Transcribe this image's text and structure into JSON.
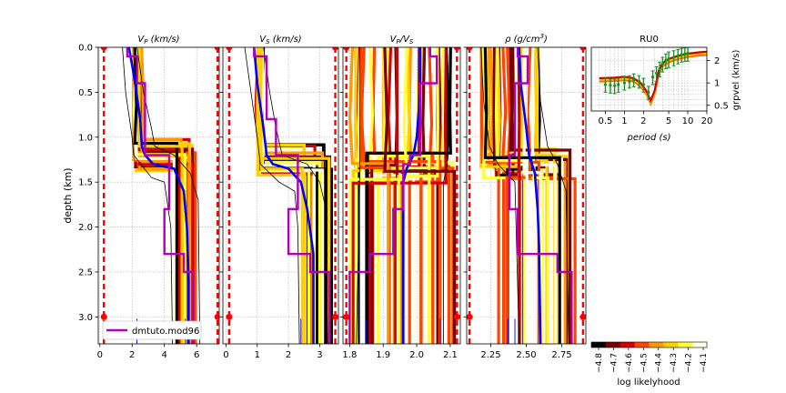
{
  "chart_data": [
    {
      "type": "line",
      "title": "V_P (km/s)",
      "title_main": "V",
      "title_sub": "P",
      "title_unit": "(km/s)",
      "ylabel": "depth (km)",
      "xlim": [
        -0.1,
        7.4
      ],
      "ylim": [
        3.3,
        0.0
      ],
      "x_ticks": [
        0,
        2,
        4,
        6
      ],
      "y_ticks": [
        0.0,
        0.5,
        1.0,
        1.5,
        2.0,
        2.5,
        3.0
      ],
      "grid": true,
      "bounds_lo": 0.25,
      "bounds_hi": 7.3,
      "jump_depth": 1.2,
      "cloud_top_lo": 2.1,
      "cloud_top_hi": 2.6,
      "cloud_bottom_lo": 4.6,
      "cloud_bottom_hi": 6.0,
      "best_model_mid": [
        [
          1.8,
          0.0
        ],
        [
          2.1,
          0.3
        ],
        [
          2.5,
          0.8
        ],
        [
          2.6,
          1.1
        ],
        [
          2.8,
          1.2
        ],
        [
          3.3,
          1.3
        ],
        [
          4.6,
          1.35
        ],
        [
          5.2,
          1.6
        ],
        [
          5.4,
          2.0
        ],
        [
          5.5,
          2.6
        ],
        [
          5.5,
          3.3
        ]
      ],
      "best_model_lo": [
        [
          1.4,
          0.0
        ],
        [
          1.6,
          0.5
        ],
        [
          2.0,
          1.0
        ],
        [
          2.1,
          1.2
        ],
        [
          3.2,
          1.45
        ],
        [
          4.0,
          1.5
        ],
        [
          4.4,
          2.0
        ],
        [
          4.5,
          3.3
        ]
      ],
      "best_model_hi": [
        [
          2.3,
          0.0
        ],
        [
          2.7,
          0.5
        ],
        [
          3.2,
          0.9
        ],
        [
          3.4,
          1.1
        ],
        [
          4.6,
          1.2
        ],
        [
          5.6,
          1.4
        ],
        [
          6.1,
          1.7
        ],
        [
          6.2,
          3.3
        ]
      ],
      "mod96": [
        [
          1.7,
          0.0
        ],
        [
          1.7,
          0.1
        ],
        [
          2.3,
          0.1
        ],
        [
          2.3,
          0.4
        ],
        [
          2.8,
          0.4
        ],
        [
          2.8,
          1.2
        ],
        [
          2.8,
          1.2
        ],
        [
          4.3,
          1.2
        ],
        [
          4.3,
          1.8
        ],
        [
          4.0,
          1.8
        ],
        [
          4.0,
          2.3
        ],
        [
          5.2,
          2.3
        ],
        [
          5.2,
          2.5
        ],
        [
          5.8,
          2.5
        ],
        [
          5.8,
          3.3
        ]
      ],
      "bottom_ticks": [
        2.3,
        5.3
      ]
    },
    {
      "type": "line",
      "title": "V_S (km/s)",
      "title_main": "V",
      "title_sub": "S",
      "title_unit": "(km/s)",
      "xlim": [
        -0.1,
        3.6
      ],
      "ylim": [
        3.3,
        0.0
      ],
      "x_ticks": [
        0,
        1,
        2,
        3
      ],
      "y_ticks": [
        0.0,
        0.5,
        1.0,
        1.5,
        2.0,
        2.5,
        3.0
      ],
      "grid": true,
      "bounds_lo": 0.1,
      "bounds_hi": 3.5,
      "jump_depth": 1.25,
      "cloud_top_lo": 1.0,
      "cloud_top_hi": 1.2,
      "cloud_bottom_lo": 2.3,
      "cloud_bottom_hi": 3.4,
      "best_model_mid": [
        [
          0.9,
          0.0
        ],
        [
          1.0,
          0.4
        ],
        [
          1.2,
          0.9
        ],
        [
          1.3,
          1.2
        ],
        [
          1.5,
          1.3
        ],
        [
          2.0,
          1.35
        ],
        [
          2.4,
          1.5
        ],
        [
          2.6,
          1.8
        ],
        [
          2.8,
          2.3
        ],
        [
          2.8,
          3.3
        ]
      ],
      "best_model_lo": [
        [
          0.6,
          0.0
        ],
        [
          0.8,
          0.5
        ],
        [
          1.0,
          1.0
        ],
        [
          1.1,
          1.3
        ],
        [
          1.7,
          1.5
        ],
        [
          2.2,
          1.6
        ],
        [
          2.3,
          2.0
        ],
        [
          2.35,
          3.3
        ]
      ],
      "best_model_hi": [
        [
          1.2,
          0.0
        ],
        [
          1.4,
          0.5
        ],
        [
          1.6,
          0.9
        ],
        [
          1.8,
          1.2
        ],
        [
          2.6,
          1.3
        ],
        [
          3.0,
          1.5
        ],
        [
          3.2,
          1.8
        ],
        [
          3.25,
          3.3
        ]
      ],
      "mod96": [
        [
          0.9,
          0.0
        ],
        [
          0.9,
          0.1
        ],
        [
          1.3,
          0.1
        ],
        [
          1.3,
          0.4
        ],
        [
          1.3,
          0.4
        ],
        [
          1.3,
          0.8
        ],
        [
          1.6,
          0.8
        ],
        [
          1.6,
          1.2
        ],
        [
          2.3,
          1.2
        ],
        [
          2.3,
          1.8
        ],
        [
          2.0,
          1.8
        ],
        [
          2.0,
          2.3
        ],
        [
          2.7,
          2.3
        ],
        [
          2.7,
          2.5
        ],
        [
          3.3,
          2.5
        ],
        [
          3.3,
          3.3
        ]
      ],
      "bottom_ticks": [
        2.4,
        2.8
      ]
    },
    {
      "type": "line",
      "title": "V_P/V_S",
      "title_main": "V",
      "title_sub": "P",
      "title_main2": "/V",
      "title_sub2": "S",
      "xlim": [
        1.78,
        2.13
      ],
      "ylim": [
        3.3,
        0.0
      ],
      "x_ticks": [
        1.8,
        1.9,
        2.0,
        2.1
      ],
      "x_tick_labels": [
        "1.8",
        "1.9",
        "2.0",
        "2.1"
      ],
      "y_ticks": [
        0.0,
        0.5,
        1.0,
        1.5,
        2.0,
        2.5,
        3.0
      ],
      "grid": true,
      "bounds_lo": 1.79,
      "bounds_hi": 2.12,
      "jump_depth": 1.35,
      "cloud_top_lo": 1.8,
      "cloud_top_hi": 2.12,
      "cloud_bottom_lo": 1.8,
      "cloud_bottom_hi": 2.12,
      "best_model_mid": [
        [
          2.01,
          0.0
        ],
        [
          2.01,
          0.5
        ],
        [
          2.0,
          1.0
        ],
        [
          1.99,
          1.2
        ],
        [
          1.97,
          1.35
        ],
        [
          1.96,
          1.5
        ],
        [
          1.96,
          2.0
        ],
        [
          1.96,
          3.3
        ]
      ],
      "best_model_lo": [
        [
          1.83,
          0.0
        ],
        [
          1.83,
          1.3
        ],
        [
          1.83,
          1.5
        ],
        [
          1.82,
          3.3
        ]
      ],
      "best_model_hi": [
        [
          2.09,
          0.0
        ],
        [
          2.09,
          1.3
        ],
        [
          2.08,
          1.5
        ],
        [
          2.08,
          3.3
        ]
      ],
      "mod96": [
        [
          2.04,
          0.0
        ],
        [
          2.04,
          0.1
        ],
        [
          2.06,
          0.1
        ],
        [
          2.06,
          0.4
        ],
        [
          2.01,
          0.4
        ],
        [
          2.01,
          1.2
        ],
        [
          1.98,
          1.2
        ],
        [
          1.98,
          1.3
        ],
        [
          1.96,
          1.3
        ],
        [
          1.96,
          1.8
        ],
        [
          1.93,
          1.8
        ],
        [
          1.93,
          2.3
        ],
        [
          1.86,
          2.3
        ],
        [
          1.86,
          2.5
        ],
        [
          1.8,
          2.5
        ],
        [
          1.8,
          3.3
        ]
      ],
      "bottom_ticks": [
        1.85,
        1.96,
        2.07
      ]
    },
    {
      "type": "line",
      "title": "ρ (g/cm^3)",
      "title_main": "ρ",
      "title_unit": "(g/cm",
      "title_sup": "3",
      "title_close": ")",
      "xlim": [
        2.08,
        2.92
      ],
      "ylim": [
        3.3,
        0.0
      ],
      "x_ticks": [
        2.25,
        2.5,
        2.75
      ],
      "x_tick_labels": [
        "2.25",
        "2.50",
        "2.75"
      ],
      "y_ticks": [
        0.0,
        0.5,
        1.0,
        1.5,
        2.0,
        2.5,
        3.0
      ],
      "grid": true,
      "bounds_lo": 2.1,
      "bounds_hi": 2.9,
      "jump_depth": 1.3,
      "cloud_top_lo": 2.15,
      "cloud_top_hi": 2.6,
      "cloud_bottom_lo": 2.3,
      "cloud_bottom_hi": 2.85,
      "best_model_mid": [
        [
          2.45,
          0.0
        ],
        [
          2.46,
          0.4
        ],
        [
          2.5,
          0.9
        ],
        [
          2.52,
          1.2
        ],
        [
          2.56,
          1.4
        ],
        [
          2.58,
          1.8
        ],
        [
          2.59,
          2.2
        ],
        [
          2.6,
          3.3
        ]
      ],
      "best_model_lo": [
        [
          2.18,
          0.0
        ],
        [
          2.2,
          0.6
        ],
        [
          2.24,
          1.1
        ],
        [
          2.3,
          1.3
        ],
        [
          2.42,
          1.5
        ],
        [
          2.45,
          3.3
        ]
      ],
      "best_model_hi": [
        [
          2.58,
          0.0
        ],
        [
          2.6,
          0.6
        ],
        [
          2.65,
          1.1
        ],
        [
          2.72,
          1.3
        ],
        [
          2.78,
          1.6
        ],
        [
          2.8,
          3.3
        ]
      ],
      "mod96": [
        [
          2.44,
          0.0
        ],
        [
          2.44,
          0.1
        ],
        [
          2.51,
          0.1
        ],
        [
          2.51,
          0.4
        ],
        [
          2.42,
          0.4
        ],
        [
          2.42,
          1.2
        ],
        [
          2.38,
          1.2
        ],
        [
          2.38,
          1.8
        ],
        [
          2.44,
          1.8
        ],
        [
          2.44,
          2.3
        ],
        [
          2.72,
          2.3
        ],
        [
          2.72,
          2.5
        ],
        [
          2.82,
          2.5
        ],
        [
          2.82,
          3.3
        ]
      ],
      "bottom_ticks": [
        2.37,
        2.42
      ]
    },
    {
      "type": "scatter",
      "title": "RU0",
      "xlabel": "period (s)",
      "xlabel_main": "period",
      "xlabel_unit": "(s)",
      "ylabel": "grpvel (km/s)",
      "x_scale": "log",
      "y_scale": "log",
      "xlim": [
        0.3,
        20
      ],
      "ylim": [
        0.42,
        3.0
      ],
      "x_ticks": [
        0.5,
        1,
        2,
        5,
        10,
        20
      ],
      "x_tick_labels": [
        "0.5",
        "1",
        "2",
        "5",
        "10",
        "20"
      ],
      "y_ticks": [
        0.5,
        1,
        2
      ],
      "y_tick_labels": [
        "0.5",
        "1",
        "2"
      ],
      "grid": true,
      "observed": {
        "period": [
          0.5,
          0.6,
          0.7,
          0.8,
          1.0,
          1.2,
          1.4,
          1.7,
          2.0,
          2.4,
          2.8,
          3.2,
          3.6,
          4.0,
          4.5,
          5.0,
          6.0,
          7.0,
          8.0,
          9.0,
          10.0
        ],
        "velocity": [
          0.95,
          0.93,
          0.92,
          0.95,
          1.0,
          1.05,
          1.1,
          1.05,
          0.95,
          0.75,
          1.2,
          1.35,
          1.55,
          1.8,
          2.0,
          2.1,
          2.2,
          2.3,
          2.4,
          2.45,
          2.5
        ],
        "error": [
          0.2,
          0.2,
          0.2,
          0.2,
          0.2,
          0.2,
          0.22,
          0.2,
          0.2,
          0.15,
          0.25,
          0.3,
          0.35,
          0.4,
          0.45,
          0.5,
          0.5,
          0.5,
          0.5,
          0.5,
          0.55
        ]
      },
      "predicted_band": {
        "period": [
          0.4,
          0.7,
          1.0,
          1.4,
          1.8,
          2.2,
          2.6,
          3.0,
          3.5,
          4.0,
          5.0,
          7.0,
          10.0,
          15.0,
          20.0
        ],
        "velocity": [
          1.1,
          1.12,
          1.15,
          1.1,
          0.95,
          0.75,
          0.55,
          0.75,
          1.4,
          1.75,
          2.0,
          2.2,
          2.35,
          2.45,
          2.5
        ]
      }
    }
  ],
  "legend": {
    "label": "dmtuto.mod96",
    "color": "#b000b8"
  },
  "colorbar": {
    "label": "log likelyhood",
    "ticks": [
      "−4.8",
      "−4.7",
      "−4.6",
      "−4.5",
      "−4.4",
      "−4.3",
      "−4.2",
      "−4.1"
    ],
    "stops": [
      "#000000",
      "#7a0000",
      "#d40000",
      "#ff4400",
      "#ff9900",
      "#ffd000",
      "#ffff40",
      "#ffffe8"
    ]
  },
  "colors": {
    "bounds": "#ff0000",
    "best": "#0000ff",
    "mod96": "#b000b8",
    "grid": "#b0b0b0",
    "obs": "#1f8f1f",
    "pred": [
      "#ff6600",
      "#ffcc00",
      "#cc0000"
    ]
  }
}
